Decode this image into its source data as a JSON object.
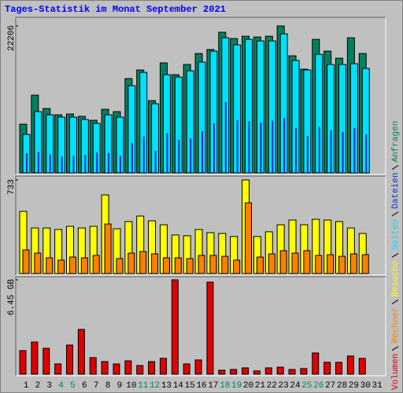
{
  "title": "Tages-Statistik im Monat September 2021",
  "weekend_color": "#008060",
  "weekend_indices": [
    3,
    4,
    10,
    11,
    17,
    18,
    24,
    25
  ],
  "chart_data": [
    {
      "type": "bar",
      "ylim": [
        0,
        22206
      ],
      "yticks": [
        22206
      ],
      "series": [
        {
          "name": "Anfragen",
          "color": "#008060",
          "values": [
            7360,
            11750,
            9730,
            8780,
            8900,
            8550,
            7950,
            9610,
            9260,
            14250,
            15550,
            10920,
            16620,
            14840,
            16380,
            18040,
            18640,
            21250,
            20300,
            20650,
            20530,
            20650,
            22206,
            17690,
            15670,
            20180,
            18400,
            17330,
            20420,
            18040,
            null
          ]
        },
        {
          "name": "Seiten",
          "color": "#00e0ff",
          "values": [
            5820,
            9260,
            8780,
            8430,
            8430,
            8070,
            7480,
            8780,
            8430,
            13180,
            15190,
            10450,
            14840,
            14480,
            15430,
            16740,
            18400,
            20420,
            19350,
            20180,
            19940,
            19940,
            21010,
            16980,
            15550,
            17920,
            16380,
            16380,
            16500,
            15790,
            null
          ]
        },
        {
          "name": "Dateien",
          "color": "#0030d0",
          "values": [
            2970,
            3200,
            2800,
            2500,
            2600,
            2700,
            3100,
            3000,
            2600,
            4500,
            5500,
            3300,
            6000,
            5000,
            5200,
            6300,
            7500,
            10700,
            8000,
            7800,
            7600,
            7900,
            8300,
            6800,
            5600,
            7000,
            6400,
            6200,
            6800,
            5800,
            null
          ]
        }
      ]
    },
    {
      "type": "bar",
      "ylim": [
        0,
        733
      ],
      "yticks": [
        733
      ],
      "series": [
        {
          "name": "Besuche",
          "color": "#ffff00",
          "values": [
            487,
            357,
            357,
            345,
            370,
            357,
            370,
            616,
            351,
            407,
            450,
            413,
            382,
            302,
            296,
            345,
            320,
            314,
            290,
            733,
            290,
            327,
            382,
            419,
            382,
            425,
            419,
            407,
            357,
            314,
            null
          ]
        },
        {
          "name": "Rechner",
          "color": "#ff8000",
          "values": [
            185,
            160,
            123,
            105,
            129,
            123,
            142,
            388,
            117,
            160,
            172,
            154,
            123,
            123,
            117,
            142,
            142,
            135,
            105,
            554,
            129,
            154,
            179,
            160,
            179,
            142,
            148,
            135,
            154,
            148,
            null
          ]
        }
      ]
    },
    {
      "type": "bar",
      "ylim": [
        0,
        6.45
      ],
      "yticks": [
        {
          "value": 6.45,
          "label": "6.45 GB"
        }
      ],
      "categories": [
        "1",
        "2",
        "3",
        "4",
        "5",
        "6",
        "7",
        "8",
        "9",
        "10",
        "11",
        "12",
        "13",
        "14",
        "15",
        "16",
        "17",
        "18",
        "19",
        "20",
        "21",
        "22",
        "23",
        "24",
        "25",
        "26",
        "27",
        "28",
        "29",
        "30",
        "31"
      ],
      "series": [
        {
          "name": "Volumen",
          "color": "#e00000",
          "values": [
            1.61,
            2.2,
            1.77,
            0.7,
            1.99,
            3.06,
            1.13,
            0.86,
            0.7,
            0.91,
            0.59,
            0.86,
            1.08,
            6.45,
            0.7,
            0.97,
            6.29,
            0.27,
            0.32,
            0.43,
            0.22,
            0.43,
            0.48,
            0.32,
            0.38,
            1.45,
            0.81,
            0.81,
            1.24,
            1.08,
            null
          ]
        }
      ]
    }
  ]
}
